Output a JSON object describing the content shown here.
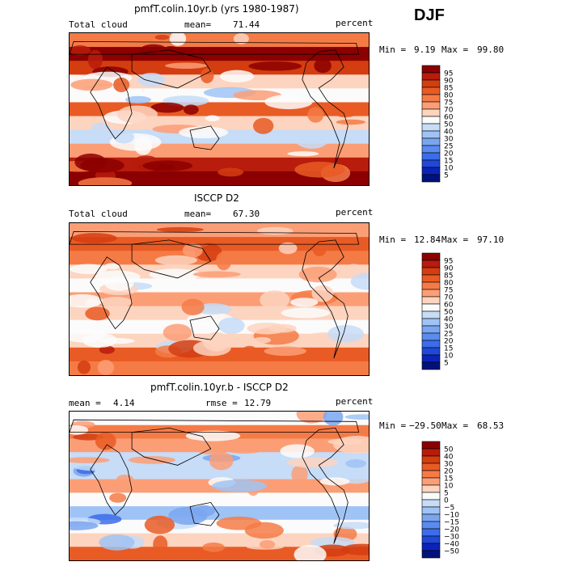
{
  "season": "DJF",
  "chart_data": [
    {
      "type": "heatmap",
      "title": "pmfT.colin.10yr.b (yrs 1980-1987)",
      "field": "Total cloud",
      "mean_label": "mean=",
      "mean": "71.44",
      "units": "percent",
      "min_label": "Min =",
      "min": "9.19",
      "max_label": "Max =",
      "max": "99.80",
      "levels": [
        "95",
        "90",
        "85",
        "80",
        "75",
        "70",
        "60",
        "50",
        "40",
        "30",
        "25",
        "20",
        "15",
        "10",
        "5"
      ],
      "colors": [
        "#8b0000",
        "#b71c0c",
        "#d43d10",
        "#e95b24",
        "#f57b46",
        "#fb9e76",
        "#fdd4bf",
        "#fbfbfb",
        "#c6dcf7",
        "#9fc3f5",
        "#7aa6f0",
        "#5a8bf0",
        "#3b6cea",
        "#1f48d8",
        "#0a23b8",
        "#00127a"
      ],
      "base_clouds": [
        75,
        95,
        88,
        62,
        55,
        80,
        66,
        45,
        70,
        92,
        98
      ],
      "features": [
        {
          "type": "wave"
        }
      ]
    },
    {
      "type": "heatmap",
      "title": "ISCCP D2",
      "field": "Total cloud",
      "mean_label": "mean=",
      "mean": "67.30",
      "units": "percent",
      "min_label": "Min =",
      "min": "12.84",
      "max_label": "Max =",
      "max": "97.10",
      "levels": [
        "95",
        "90",
        "85",
        "80",
        "75",
        "70",
        "60",
        "50",
        "40",
        "30",
        "25",
        "20",
        "15",
        "10",
        "5"
      ],
      "colors": [
        "#8b0000",
        "#b71c0c",
        "#d43d10",
        "#e95b24",
        "#f57b46",
        "#fb9e76",
        "#fdd4bf",
        "#fbfbfb",
        "#c6dcf7",
        "#9fc3f5",
        "#7aa6f0",
        "#5a8bf0",
        "#3b6cea",
        "#1f48d8",
        "#0a23b8",
        "#00127a"
      ],
      "base_clouds": [
        72,
        80,
        76,
        64,
        58,
        70,
        62,
        52,
        66,
        84,
        78
      ]
    },
    {
      "type": "heatmap",
      "title": "pmfT.colin.10yr.b - ISCCP D2",
      "field": "",
      "mean_label": "mean =",
      "mean": "4.14",
      "rmse_label": "rmse =",
      "rmse": "12.79",
      "units": "percent",
      "min_label": "Min =",
      "min": "−29.50",
      "max_label": "Max =",
      "max": "68.53",
      "levels": [
        "50",
        "40",
        "30",
        "20",
        "15",
        "10",
        "5",
        "0",
        "−5",
        "−10",
        "−15",
        "−20",
        "−30",
        "−40",
        "−50"
      ],
      "colors": [
        "#8b0000",
        "#b71c0c",
        "#d43d10",
        "#e95b24",
        "#f57b46",
        "#fb9e76",
        "#fdd4bf",
        "#fbfbfb",
        "#c6dcf7",
        "#9fc3f5",
        "#7aa6f0",
        "#5a8bf0",
        "#3b6cea",
        "#1f48d8",
        "#0a23b8",
        "#00127a"
      ],
      "base_clouds": [
        4,
        15,
        12,
        -2,
        -5,
        10,
        4,
        -8,
        3,
        8,
        20
      ]
    }
  ]
}
